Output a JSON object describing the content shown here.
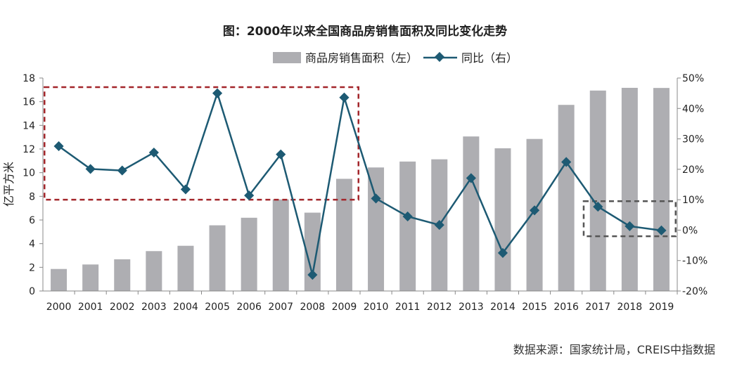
{
  "chart_data": {
    "type": "bar",
    "title": "图：2000年以来全国商品房销售面积及同比变化走势",
    "ylabel": "亿平方米",
    "categories": [
      "2000",
      "2001",
      "2002",
      "2003",
      "2004",
      "2005",
      "2006",
      "2007",
      "2008",
      "2009",
      "2010",
      "2011",
      "2012",
      "2013",
      "2014",
      "2015",
      "2016",
      "2017",
      "2018",
      "2019"
    ],
    "series": [
      {
        "name": "商品房销售面积（左）",
        "type": "bar",
        "axis": "left",
        "color": "#aeaeb2",
        "values": [
          1.86,
          2.24,
          2.68,
          3.37,
          3.82,
          5.55,
          6.19,
          7.74,
          6.62,
          9.48,
          10.44,
          10.94,
          11.13,
          13.06,
          12.06,
          12.85,
          15.73,
          16.94,
          17.17,
          17.16
        ]
      },
      {
        "name": "同比（右）",
        "type": "line",
        "axis": "right",
        "color": "#1d5a73",
        "values": [
          27.6,
          20.1,
          19.6,
          25.5,
          13.4,
          45.0,
          11.4,
          24.9,
          -14.7,
          43.6,
          10.4,
          4.5,
          1.7,
          17.1,
          -7.5,
          6.5,
          22.4,
          7.7,
          1.3,
          -0.1
        ]
      }
    ],
    "yleft": {
      "min": 0,
      "max": 18,
      "step": 2,
      "ticks": [
        "0",
        "2",
        "4",
        "6",
        "8",
        "10",
        "12",
        "14",
        "16",
        "18"
      ]
    },
    "yright": {
      "min": -20,
      "max": 50,
      "step": 10,
      "ticks": [
        "-20%",
        "-10%",
        "0%",
        "10%",
        "20%",
        "30%",
        "40%",
        "50%"
      ]
    },
    "legend_position": "top",
    "grid": false,
    "highlight_boxes": [
      {
        "from": "2000",
        "to": "2009",
        "right_min": 10,
        "right_max": 47,
        "color": "#a3262b"
      },
      {
        "from": "2017",
        "to": "2019",
        "right_min": -2,
        "right_max": 9.5,
        "color": "#555555"
      }
    ]
  },
  "source": "数据来源：国家统计局，CREIS中指数据"
}
